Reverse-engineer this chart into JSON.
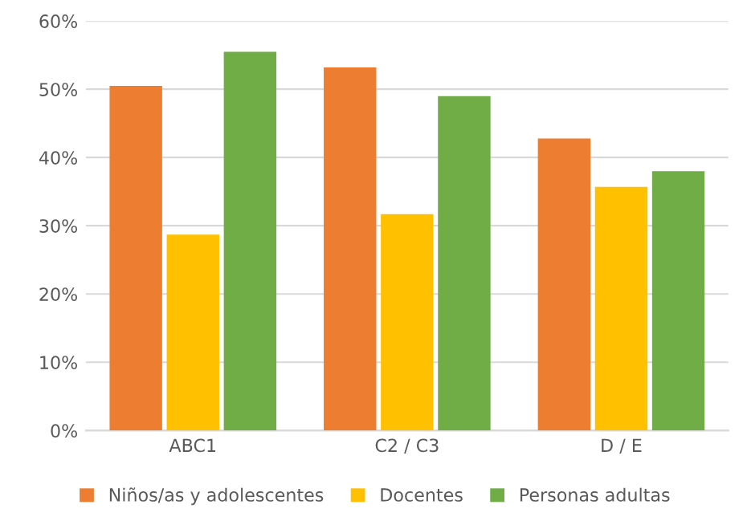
{
  "chart_data": {
    "type": "bar",
    "categories": [
      "ABC1",
      "C2 / C3",
      "D / E"
    ],
    "series": [
      {
        "name": "Niños/as y adolescentes",
        "color": "#ed7d31",
        "values": [
          50.5,
          53.2,
          42.8
        ]
      },
      {
        "name": "Docentes",
        "color": "#ffc000",
        "values": [
          28.7,
          31.7,
          35.7
        ]
      },
      {
        "name": "Personas adultas",
        "color": "#70ad47",
        "values": [
          55.5,
          49.0,
          38.0
        ]
      }
    ],
    "ylim": [
      0,
      60
    ],
    "yticks": [
      {
        "value": 0,
        "label": "0%"
      },
      {
        "value": 10,
        "label": "10%"
      },
      {
        "value": 20,
        "label": "20%"
      },
      {
        "value": 30,
        "label": "30%"
      },
      {
        "value": 40,
        "label": "40%"
      },
      {
        "value": 50,
        "label": "50%"
      },
      {
        "value": 60,
        "label": "60%"
      }
    ],
    "grid": "y",
    "legend": "bottom"
  }
}
